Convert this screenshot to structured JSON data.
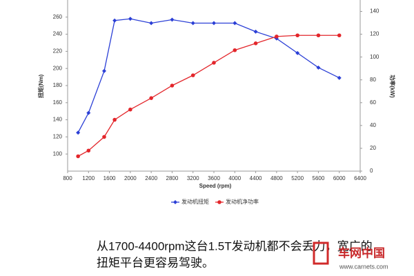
{
  "chart_data": {
    "type": "line",
    "x": [
      1000,
      1200,
      1500,
      1700,
      2000,
      2400,
      2800,
      3200,
      3600,
      4000,
      4400,
      4800,
      5200,
      5600,
      6000
    ],
    "xlim": [
      800,
      6400
    ],
    "xticks": [
      800,
      1200,
      1600,
      2000,
      2400,
      2800,
      3200,
      3600,
      4000,
      4400,
      4800,
      5200,
      5600,
      6000,
      6400
    ],
    "xlabel": "Speed (rpm)",
    "ylim": [
      80,
      280
    ],
    "yticks": [
      100,
      120,
      140,
      160,
      180,
      200,
      220,
      240,
      260
    ],
    "ylabel": "扭矩(Nm)",
    "y2lim": [
      0,
      150
    ],
    "y2ticks": [
      0,
      20,
      40,
      60,
      80,
      100,
      120,
      140
    ],
    "y2label": "功率(kW)",
    "grid": false,
    "series": [
      {
        "name": "发动机扭矩",
        "color": "#2b3fd6",
        "values": [
          125,
          148,
          197,
          256,
          258,
          253,
          257,
          253,
          253,
          253,
          243,
          235,
          218,
          201,
          189
        ]
      },
      {
        "name": "发动机净功率",
        "color": "#e3262b",
        "axis": "y2",
        "values": [
          13,
          18,
          30,
          45,
          54,
          64,
          75,
          84,
          95,
          106,
          112,
          118,
          119,
          119,
          119
        ]
      }
    ]
  },
  "caption": [
    "从1700-4400rpm这台1.5T发动机都不会丢力，宽广的",
    "扭矩平台更容易驾驶。"
  ],
  "watermark": {
    "brand": "车网中国",
    "url": "www.carnets.com"
  }
}
